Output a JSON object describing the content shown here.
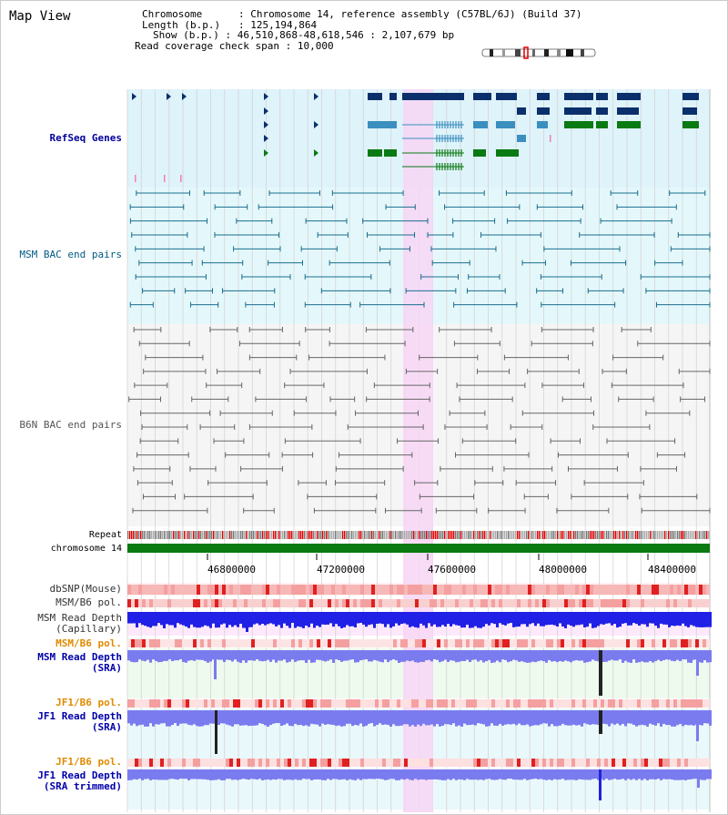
{
  "view": {
    "title": "Map View"
  },
  "info": {
    "chromosome_key": "Chromosome",
    "chromosome_value": "Chromosome 14, reference assembly (C57BL/6J) (Build 37)",
    "length_key": "Length (b.p.)",
    "length_value": "125,194,864",
    "show_key": "Show (b.p.)",
    "show_value": "46,510,868-48,618,546 : 2,107,679 bp",
    "coverage_key": "Read coverage check span",
    "coverage_value": "10,000"
  },
  "tracks": {
    "refseq": "RefSeq Genes",
    "msm_bac": "MSM BAC end pairs",
    "b6n_bac": "B6N BAC end pairs",
    "repeat": "Repeat",
    "chromosome": "chromosome 14",
    "dbsnp": "dbSNP(Mouse)",
    "msm_b6_pol": "MSM/B6 pol.",
    "msm_depth_cap_1": "MSM Read Depth",
    "msm_depth_cap_2": "(Capillary)",
    "msm_b6_pol_2": "MSM/B6 pol.",
    "msm_depth_sra_1": "MSM Read Depth",
    "msm_depth_sra_2": "(SRA)",
    "jf1_b6_pol": "JF1/B6 pol.",
    "jf1_depth_sra_1": "JF1 Read Depth",
    "jf1_depth_sra_2": "(SRA)",
    "jf1_b6_pol_2": "JF1/B6 pol.",
    "jf1_depth_trim_1": "JF1 Read Depth",
    "jf1_depth_trim_2": "(SRA trimmed)"
  },
  "axis": {
    "ticks": [
      "46800000",
      "47200000",
      "47600000",
      "48000000",
      "48400000"
    ]
  },
  "colors": {
    "refseq_bg": "#dff3fb",
    "gene_dark": "#0b2f6b",
    "gene_mid": "#3a8fbf",
    "gene_green": "#0a7a12",
    "bac_msm": "#1a6e8e",
    "bac_b6n": "#666666",
    "highlight": "#f7d6f4",
    "chrom_bar": "#0a7a12",
    "depth_blue": "#2020e6",
    "depth_sra": "#7b7bf0"
  }
}
